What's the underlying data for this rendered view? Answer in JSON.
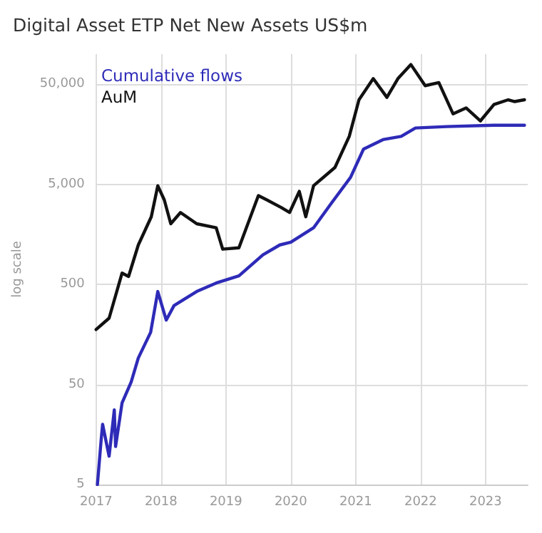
{
  "chart_data": {
    "type": "line",
    "title": "Digital Asset ETP Net New Assets US$m",
    "ylabel": "log scale",
    "log": "y",
    "grid": true,
    "legend": "top left",
    "marker": "none",
    "line_style": "solid",
    "xlim": [
      2017,
      2023.65
    ],
    "xticks": [
      2017,
      2018,
      2019,
      2020,
      2021,
      2022,
      2023
    ],
    "ylim": [
      5,
      100000
    ],
    "yticks": [
      5,
      50,
      500,
      {
        "value": 5000,
        "label": "5,000"
      },
      {
        "value": 50000,
        "label": "50,000"
      }
    ],
    "series": [
      {
        "name": "Cumulative flows",
        "color": "#2e2bb8",
        "x": [
          2017.02,
          2017.08,
          2017.1,
          2017.2,
          2017.28,
          2017.3,
          2017.4,
          2017.54,
          2017.65,
          2017.84,
          2017.95,
          2018.08,
          2018.2,
          2018.55,
          2018.85,
          2019.2,
          2019.57,
          2019.83,
          2020.0,
          2020.35,
          2020.63,
          2020.92,
          2021.12,
          2021.42,
          2021.7,
          2021.92,
          2022.4,
          2023.13,
          2023.6
        ],
        "values": [
          5,
          14.6,
          20,
          9.6,
          27.9,
          12,
          32.8,
          53,
          92,
          166,
          425,
          220,
          307,
          425,
          516,
          608,
          988,
          1240,
          1320,
          1840,
          3280,
          5870,
          11250,
          14000,
          15070,
          18300,
          18900,
          19500,
          19500
        ]
      },
      {
        "name": "AuM",
        "color": "#111111",
        "x": [
          2017.0,
          2017.2,
          2017.4,
          2017.5,
          2017.65,
          2017.85,
          2017.95,
          2018.05,
          2018.15,
          2018.3,
          2018.55,
          2018.85,
          2018.95,
          2019.2,
          2019.5,
          2019.63,
          2019.85,
          2019.98,
          2020.13,
          2020.23,
          2020.35,
          2020.68,
          2020.9,
          2021.05,
          2021.27,
          2021.48,
          2021.65,
          2021.85,
          2022.07,
          2022.28,
          2022.5,
          2022.7,
          2022.92,
          2023.13,
          2023.35,
          2023.45,
          2023.6
        ],
        "values": [
          177,
          230,
          649,
          600,
          1240,
          2370,
          4840,
          3500,
          2018,
          2615,
          2020,
          1840,
          1125,
          1160,
          3860,
          3500,
          2940,
          2615,
          4250,
          2370,
          4840,
          7380,
          15070,
          35000,
          57000,
          37000,
          57000,
          78700,
          48400,
          52000,
          25300,
          29000,
          21500,
          31400,
          35000,
          33600,
          35000
        ]
      }
    ]
  }
}
